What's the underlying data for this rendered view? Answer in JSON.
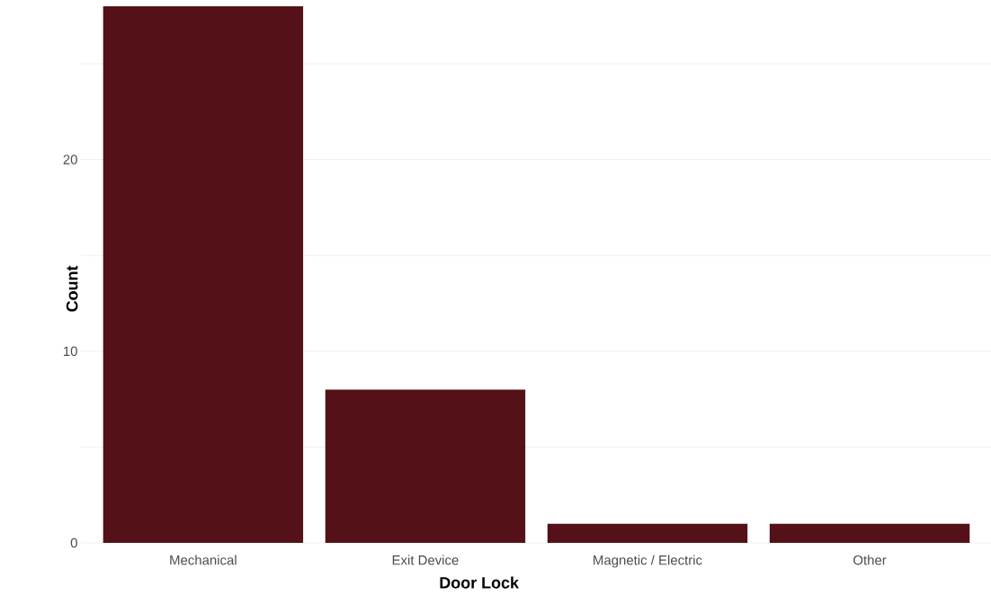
{
  "chart_data": {
    "type": "bar",
    "xlabel": "Door Lock",
    "ylabel": "Count",
    "categories": [
      "Mechanical",
      "Exit Device",
      "Magnetic / Electric",
      "Other"
    ],
    "values": [
      28,
      8,
      1,
      1
    ],
    "color": "#541117",
    "yticks": [
      0,
      {
        "value": 5,
        "label": null
      },
      10,
      {
        "value": 15,
        "label": null
      },
      20,
      {
        "value": 25,
        "label": null
      }
    ],
    "ylim": [
      0,
      28
    ],
    "grid": "y"
  }
}
